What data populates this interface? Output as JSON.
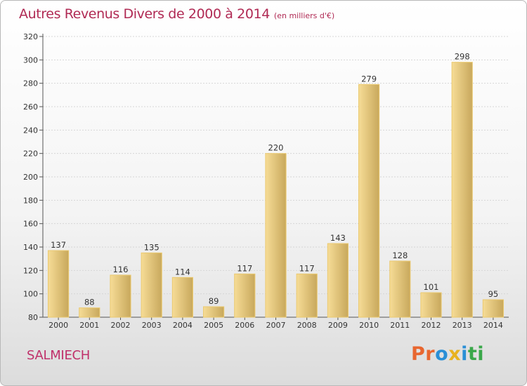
{
  "header": {
    "title": "Autres Revenus Divers de 2000 à 2014",
    "subtitle": "(en milliers d'€)"
  },
  "footer": {
    "location": "SALMIECH",
    "brand_letters": [
      "P",
      "r",
      "o",
      "x",
      "i",
      "t",
      "i"
    ],
    "brand_colors": [
      "#e8662f",
      "#e8662f",
      "#2a8fd6",
      "#e8b21f",
      "#2a8fd6",
      "#3aa84a",
      "#3aa84a"
    ]
  },
  "colors": {
    "bar_fill_start": "#f6dc96",
    "bar_fill_end": "#c8a85c",
    "bar_edge": "#ebc96f",
    "grid": "#d6d6d6",
    "axis": "#555555"
  },
  "chart_data": {
    "type": "bar",
    "title": "Autres Revenus Divers de 2000 à 2014",
    "subtitle": "(en milliers d'€)",
    "categories": [
      "2000",
      "2001",
      "2002",
      "2003",
      "2004",
      "2005",
      "2006",
      "2007",
      "2008",
      "2009",
      "2010",
      "2011",
      "2012",
      "2013",
      "2014"
    ],
    "values": [
      137,
      88,
      116,
      135,
      114,
      89,
      117,
      220,
      117,
      143,
      279,
      128,
      101,
      298,
      95
    ],
    "ylim": [
      80,
      320
    ],
    "yticks": [
      80,
      100,
      120,
      140,
      160,
      180,
      200,
      220,
      240,
      260,
      280,
      300,
      320
    ],
    "grid": true,
    "data_labels": true
  }
}
